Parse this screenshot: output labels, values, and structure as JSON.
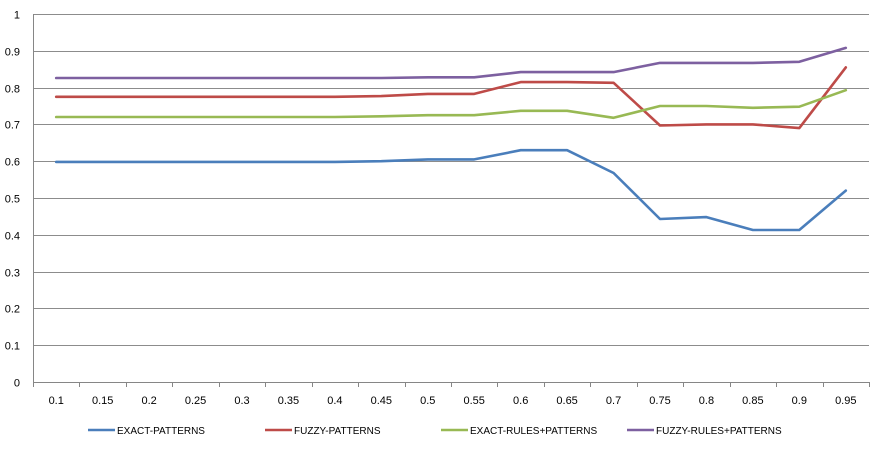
{
  "chart_data": {
    "type": "line",
    "title": "",
    "xlabel": "",
    "ylabel": "",
    "grid": "horizontal",
    "legend_position": "bottom",
    "ylim": [
      0,
      1
    ],
    "y_ticks": [
      "0",
      "0.1",
      "0.2",
      "0.3",
      "0.4",
      "0.5",
      "0.6",
      "0.7",
      "0.8",
      "0.9",
      "1"
    ],
    "categories": [
      "0.1",
      "0.15",
      "0.2",
      "0.25",
      "0.3",
      "0.35",
      "0.4",
      "0.45",
      "0.5",
      "0.55",
      "0.6",
      "0.65",
      "0.7",
      "0.75",
      "0.8",
      "0.85",
      "0.9",
      "0.95"
    ],
    "series": [
      {
        "name": "EXACT-PATTERNS",
        "color": "#4a7ebb",
        "values": [
          0.598,
          0.598,
          0.598,
          0.598,
          0.598,
          0.598,
          0.598,
          0.6,
          0.605,
          0.605,
          0.63,
          0.63,
          0.568,
          0.443,
          0.448,
          0.413,
          0.413,
          0.52
        ]
      },
      {
        "name": "FUZZY-PATTERNS",
        "color": "#be4b48",
        "values": [
          0.775,
          0.775,
          0.775,
          0.775,
          0.775,
          0.775,
          0.775,
          0.777,
          0.783,
          0.783,
          0.815,
          0.815,
          0.813,
          0.697,
          0.7,
          0.7,
          0.69,
          0.855
        ]
      },
      {
        "name": "EXACT-RULES+PATTERNS",
        "color": "#98b954",
        "values": [
          0.72,
          0.72,
          0.72,
          0.72,
          0.72,
          0.72,
          0.72,
          0.722,
          0.725,
          0.725,
          0.737,
          0.737,
          0.718,
          0.75,
          0.75,
          0.745,
          0.748,
          0.793
        ]
      },
      {
        "name": "FUZZY-RULES+PATTERNS",
        "color": "#7d60a0",
        "values": [
          0.826,
          0.826,
          0.826,
          0.826,
          0.826,
          0.826,
          0.826,
          0.826,
          0.828,
          0.828,
          0.842,
          0.842,
          0.842,
          0.867,
          0.867,
          0.867,
          0.87,
          0.908
        ]
      }
    ]
  }
}
